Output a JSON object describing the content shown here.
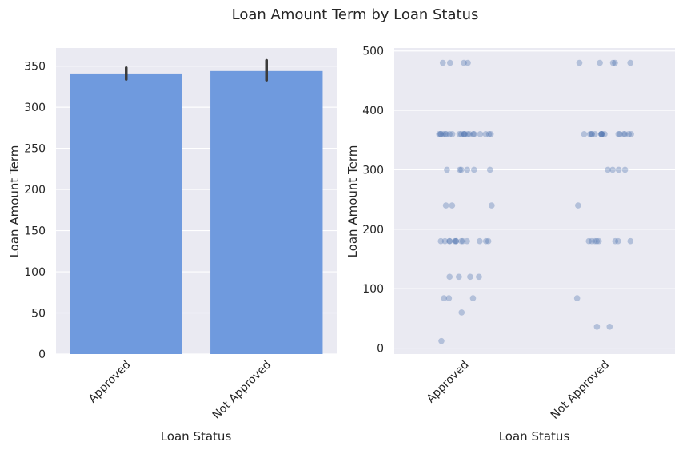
{
  "figure": {
    "title": "Loan Amount Term by Loan Status"
  },
  "colors": {
    "panel_bg": "#EAEAF2",
    "grid": "#FFFFFF",
    "bar": "#6F9ADE",
    "error_bar": "#3A3A3A",
    "point": "#4C72B0"
  },
  "chart_data": [
    {
      "type": "bar",
      "title": "",
      "xlabel": "Loan Status",
      "ylabel": "Loan Amount Term",
      "categories": [
        "Approved",
        "Not Approved"
      ],
      "values": [
        341,
        344
      ],
      "error_low": [
        334,
        333
      ],
      "error_high": [
        348,
        357
      ],
      "ylim": [
        0,
        372
      ],
      "yticks": [
        0,
        50,
        100,
        150,
        200,
        250,
        300,
        350
      ],
      "grid": true
    },
    {
      "type": "scatter",
      "title": "",
      "xlabel": "Loan Status",
      "ylabel": "Loan Amount Term",
      "categories": [
        "Approved",
        "Not Approved"
      ],
      "ylim": [
        -10,
        505
      ],
      "yticks": [
        0,
        100,
        200,
        300,
        400,
        500
      ],
      "grid": true,
      "points": [
        {
          "category": "Approved",
          "values": [
            480,
            480,
            480,
            480,
            360,
            360,
            360,
            360,
            360,
            360,
            360,
            360,
            360,
            360,
            360,
            360,
            360,
            360,
            360,
            360,
            360,
            360,
            360,
            360,
            360,
            300,
            300,
            300,
            300,
            300,
            300,
            240,
            240,
            240,
            180,
            180,
            180,
            180,
            180,
            180,
            180,
            180,
            180,
            180,
            180,
            180,
            180,
            120,
            120,
            120,
            120,
            84,
            84,
            84,
            60,
            12
          ]
        },
        {
          "category": "Not Approved",
          "values": [
            480,
            480,
            480,
            480,
            480,
            360,
            360,
            360,
            360,
            360,
            360,
            360,
            360,
            360,
            360,
            360,
            360,
            360,
            360,
            360,
            360,
            300,
            300,
            300,
            300,
            240,
            180,
            180,
            180,
            180,
            180,
            180,
            180,
            180,
            84,
            36,
            36
          ]
        }
      ]
    }
  ]
}
